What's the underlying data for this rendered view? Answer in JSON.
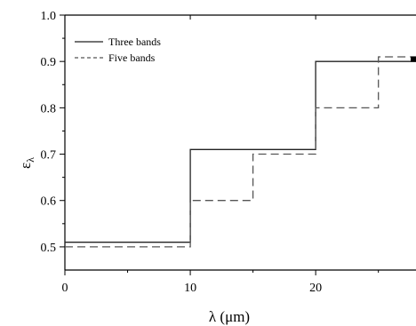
{
  "chart_data": {
    "type": "line",
    "title": "",
    "xlabel": "λ (μm)",
    "ylabel": "ελ",
    "ylabel_main": "ε",
    "ylabel_sub": "λ",
    "xlim": [
      0,
      28
    ],
    "ylim": [
      0.45,
      1.0
    ],
    "xticks": [
      0,
      10,
      20
    ],
    "xtick_labels": [
      "0",
      "10",
      "20"
    ],
    "yticks": [
      0.5,
      0.6,
      0.7,
      0.8,
      0.9,
      1.0
    ],
    "ytick_labels": [
      "0.5",
      "0.6",
      "0.7",
      "0.8",
      "0.9",
      "1.0"
    ],
    "grid": false,
    "legend_position": "top-left",
    "series": [
      {
        "name": "Three bands",
        "style": "solid",
        "color": "#222222",
        "x": [
          0,
          10,
          10,
          20,
          20,
          28
        ],
        "y": [
          0.51,
          0.51,
          0.71,
          0.71,
          0.9,
          0.9
        ]
      },
      {
        "name": "Five bands",
        "style": "dashed",
        "color": "#555555",
        "x": [
          0,
          10,
          10,
          15,
          15,
          20,
          20,
          25,
          25,
          28
        ],
        "y": [
          0.5,
          0.5,
          0.6,
          0.6,
          0.7,
          0.7,
          0.8,
          0.8,
          0.91,
          0.91
        ]
      }
    ]
  }
}
